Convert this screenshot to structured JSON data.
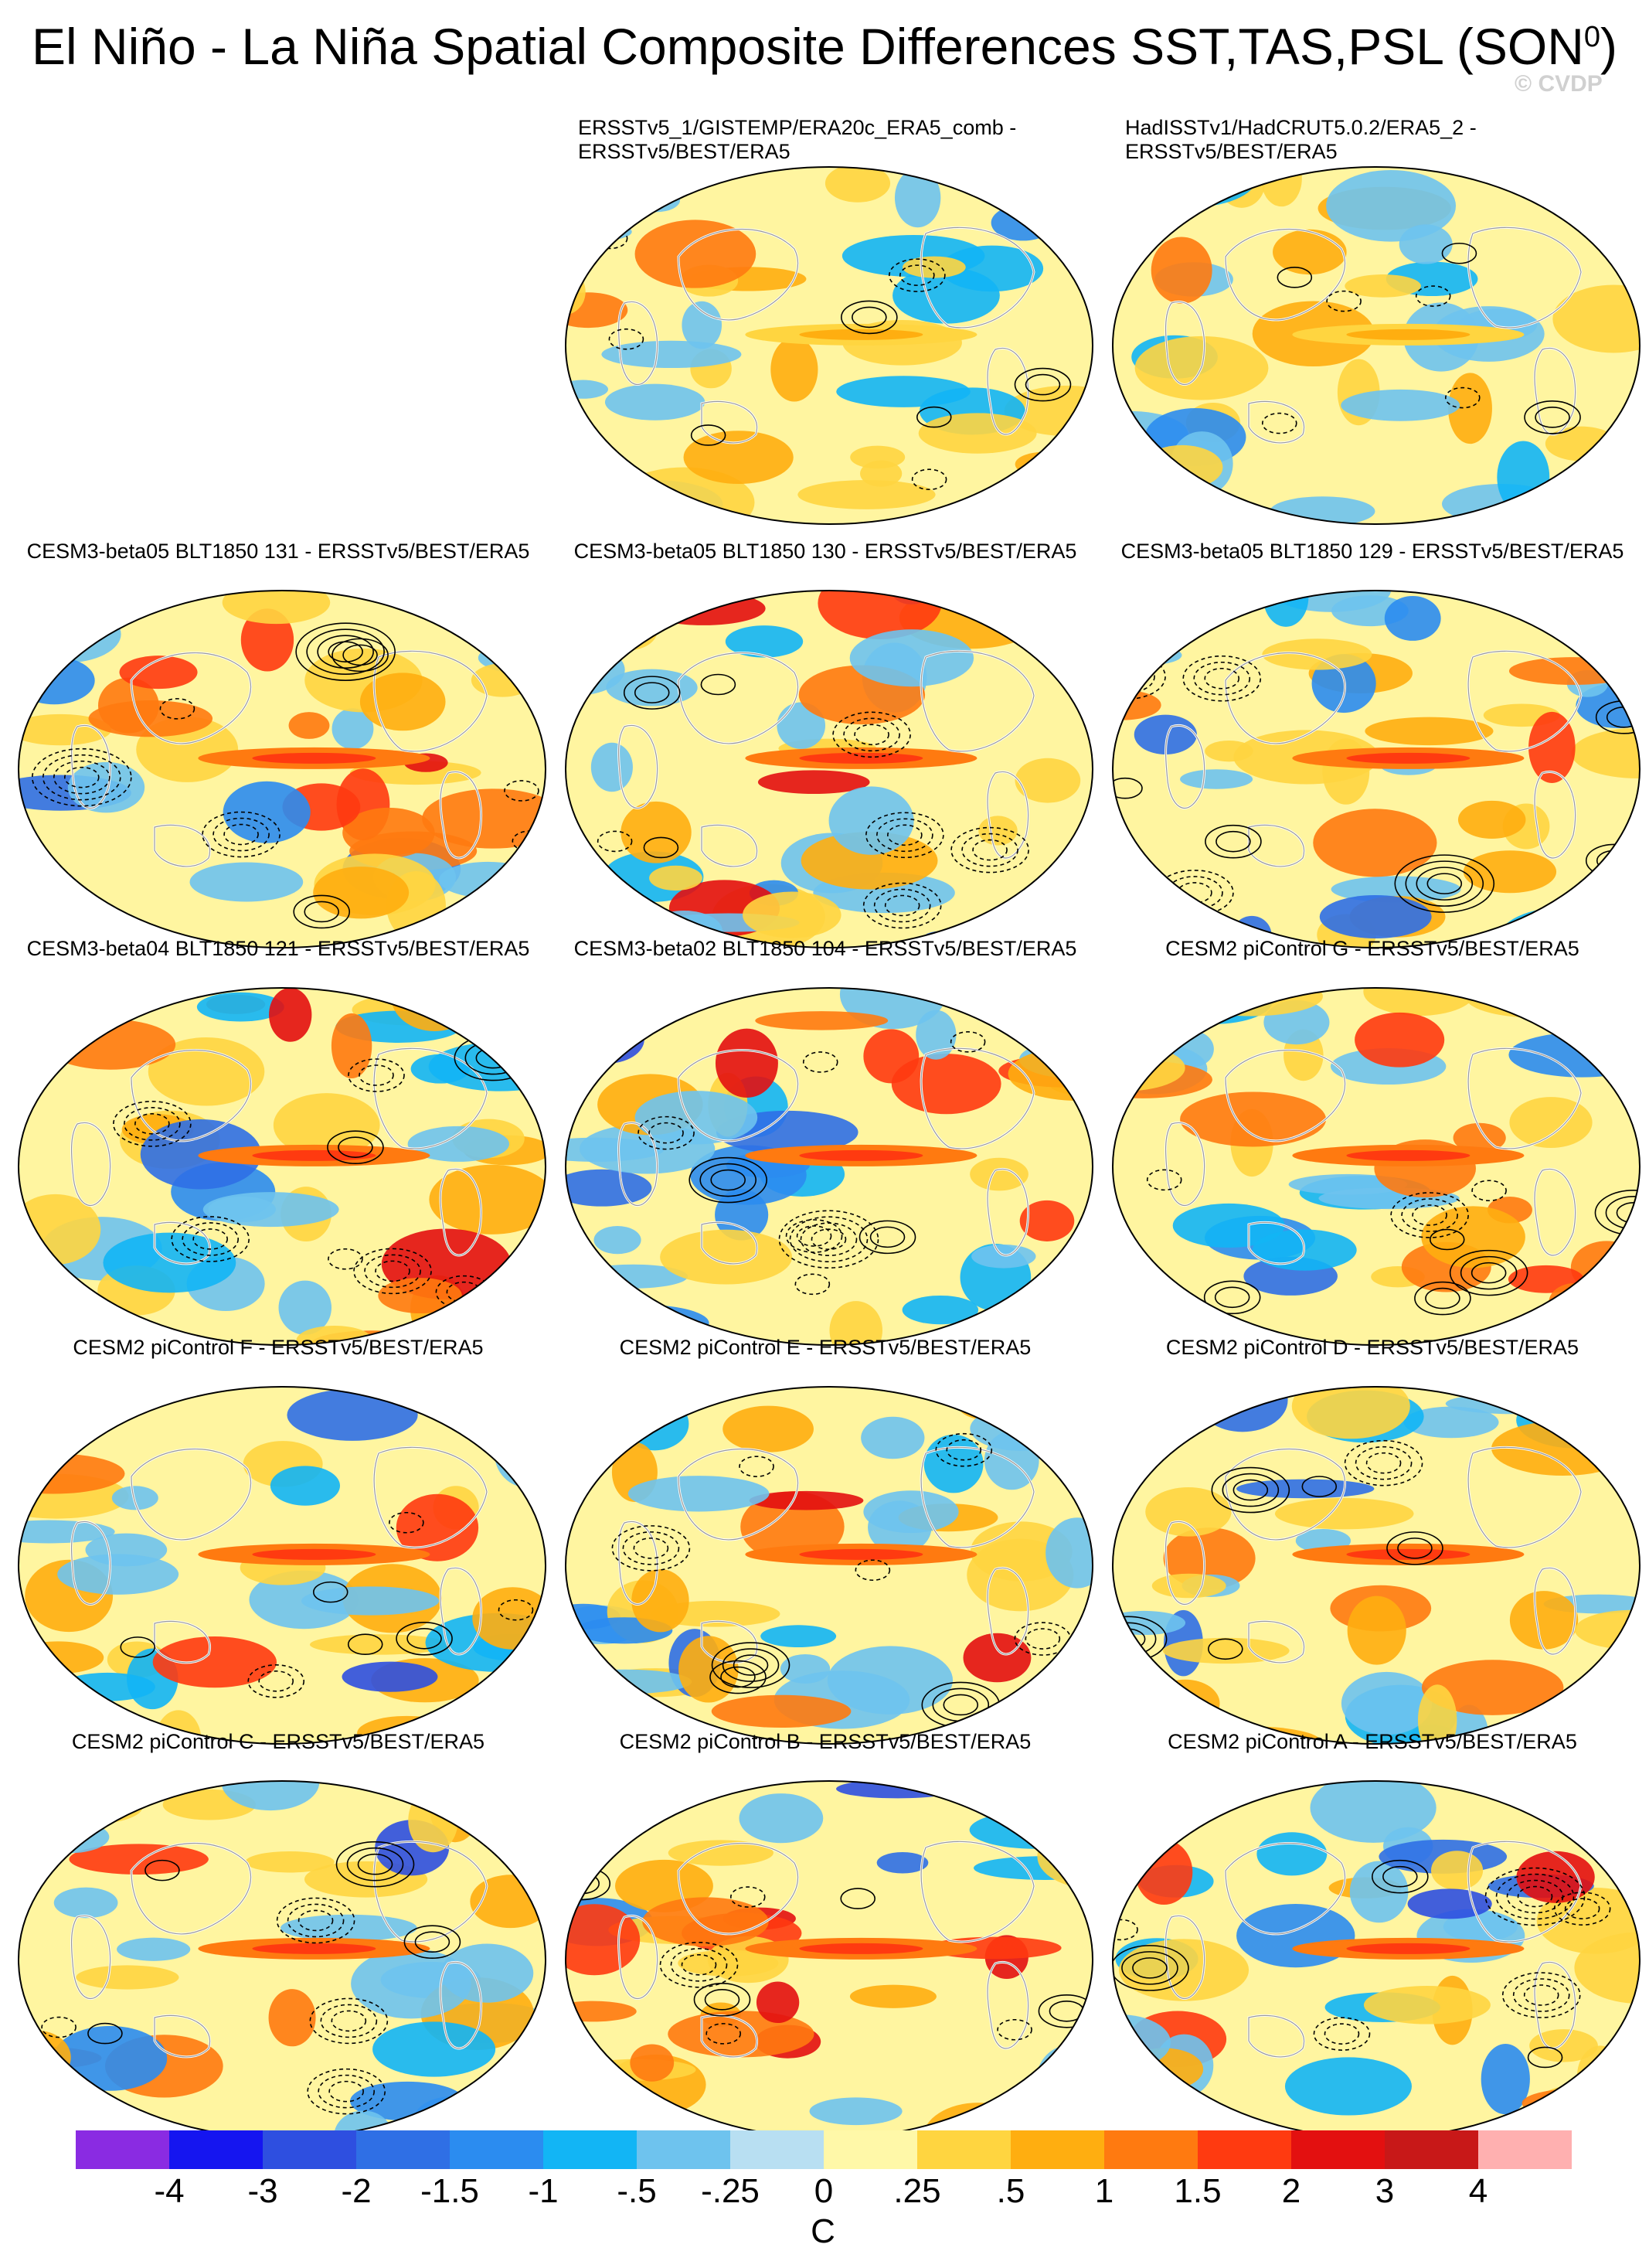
{
  "title": {
    "main": "El Niño - La Niña Spatial Composite Differences SST,TAS,PSL (SON",
    "superscript": "0",
    "close": ")"
  },
  "watermark": "© CVDP",
  "panels": [
    {
      "row": 0,
      "col": 1,
      "title_line1": "ERSSTv5_1/GISTEMP/ERA20c_ERA5_comb -",
      "title_line2": "ERSSTv5/BEST/ERA5",
      "anomaly_intensity": 0.3
    },
    {
      "row": 0,
      "col": 2,
      "title_line1": "HadISSTv1/HadCRUT5.0.2/ERA5_2 -",
      "title_line2": "ERSSTv5/BEST/ERA5",
      "anomaly_intensity": 0.3
    },
    {
      "row": 1,
      "col": 0,
      "title_line1": "CESM3-beta05 BLT1850 131 - ERSSTv5/BEST/ERA5",
      "title_line2": "",
      "anomaly_intensity": 0.85
    },
    {
      "row": 1,
      "col": 1,
      "title_line1": "CESM3-beta05 BLT1850 130 - ERSSTv5/BEST/ERA5",
      "title_line2": "",
      "anomaly_intensity": 0.85
    },
    {
      "row": 1,
      "col": 2,
      "title_line1": "CESM3-beta05 BLT1850 129 - ERSSTv5/BEST/ERA5",
      "title_line2": "",
      "anomaly_intensity": 0.85
    },
    {
      "row": 2,
      "col": 0,
      "title_line1": "CESM3-beta04 BLT1850 121 - ERSSTv5/BEST/ERA5",
      "title_line2": "",
      "anomaly_intensity": 0.75
    },
    {
      "row": 2,
      "col": 1,
      "title_line1": "CESM3-beta02 BLT1850 104 - ERSSTv5/BEST/ERA5",
      "title_line2": "",
      "anomaly_intensity": 0.85
    },
    {
      "row": 2,
      "col": 2,
      "title_line1": "CESM2 piControl G - ERSSTv5/BEST/ERA5",
      "title_line2": "",
      "anomaly_intensity": 0.75
    },
    {
      "row": 3,
      "col": 0,
      "title_line1": "CESM2 piControl F - ERSSTv5/BEST/ERA5",
      "title_line2": "",
      "anomaly_intensity": 0.75
    },
    {
      "row": 3,
      "col": 1,
      "title_line1": "CESM2 piControl E - ERSSTv5/BEST/ERA5",
      "title_line2": "",
      "anomaly_intensity": 0.8
    },
    {
      "row": 3,
      "col": 2,
      "title_line1": "CESM2 piControl D - ERSSTv5/BEST/ERA5",
      "title_line2": "",
      "anomaly_intensity": 0.75
    },
    {
      "row": 4,
      "col": 0,
      "title_line1": "CESM2 piControl C - ERSSTv5/BEST/ERA5",
      "title_line2": "",
      "anomaly_intensity": 0.85
    },
    {
      "row": 4,
      "col": 1,
      "title_line1": "CESM2 piControl B - ERSSTv5/BEST/ERA5",
      "title_line2": "",
      "anomaly_intensity": 0.85
    },
    {
      "row": 4,
      "col": 2,
      "title_line1": "CESM2 piControl A - ERSSTv5/BEST/ERA5",
      "title_line2": "",
      "anomaly_intensity": 0.85
    }
  ],
  "colorbar": {
    "colors": [
      "#8a2be2",
      "#1515f0",
      "#2e4fe0",
      "#2f6fe5",
      "#2b8cf0",
      "#12b5f5",
      "#6ec3ee",
      "#b8dff2",
      "#fff8a8",
      "#ffd540",
      "#ffae10",
      "#ff7a10",
      "#ff3a10",
      "#e31010",
      "#c81818",
      "#ffb0b0"
    ],
    "labels": [
      "-4",
      "-3",
      "-2",
      "-1.5",
      "-1",
      "-.5",
      "-.25",
      "0",
      ".25",
      ".5",
      "1",
      "1.5",
      "2",
      "3",
      "4"
    ],
    "units": "C"
  }
}
